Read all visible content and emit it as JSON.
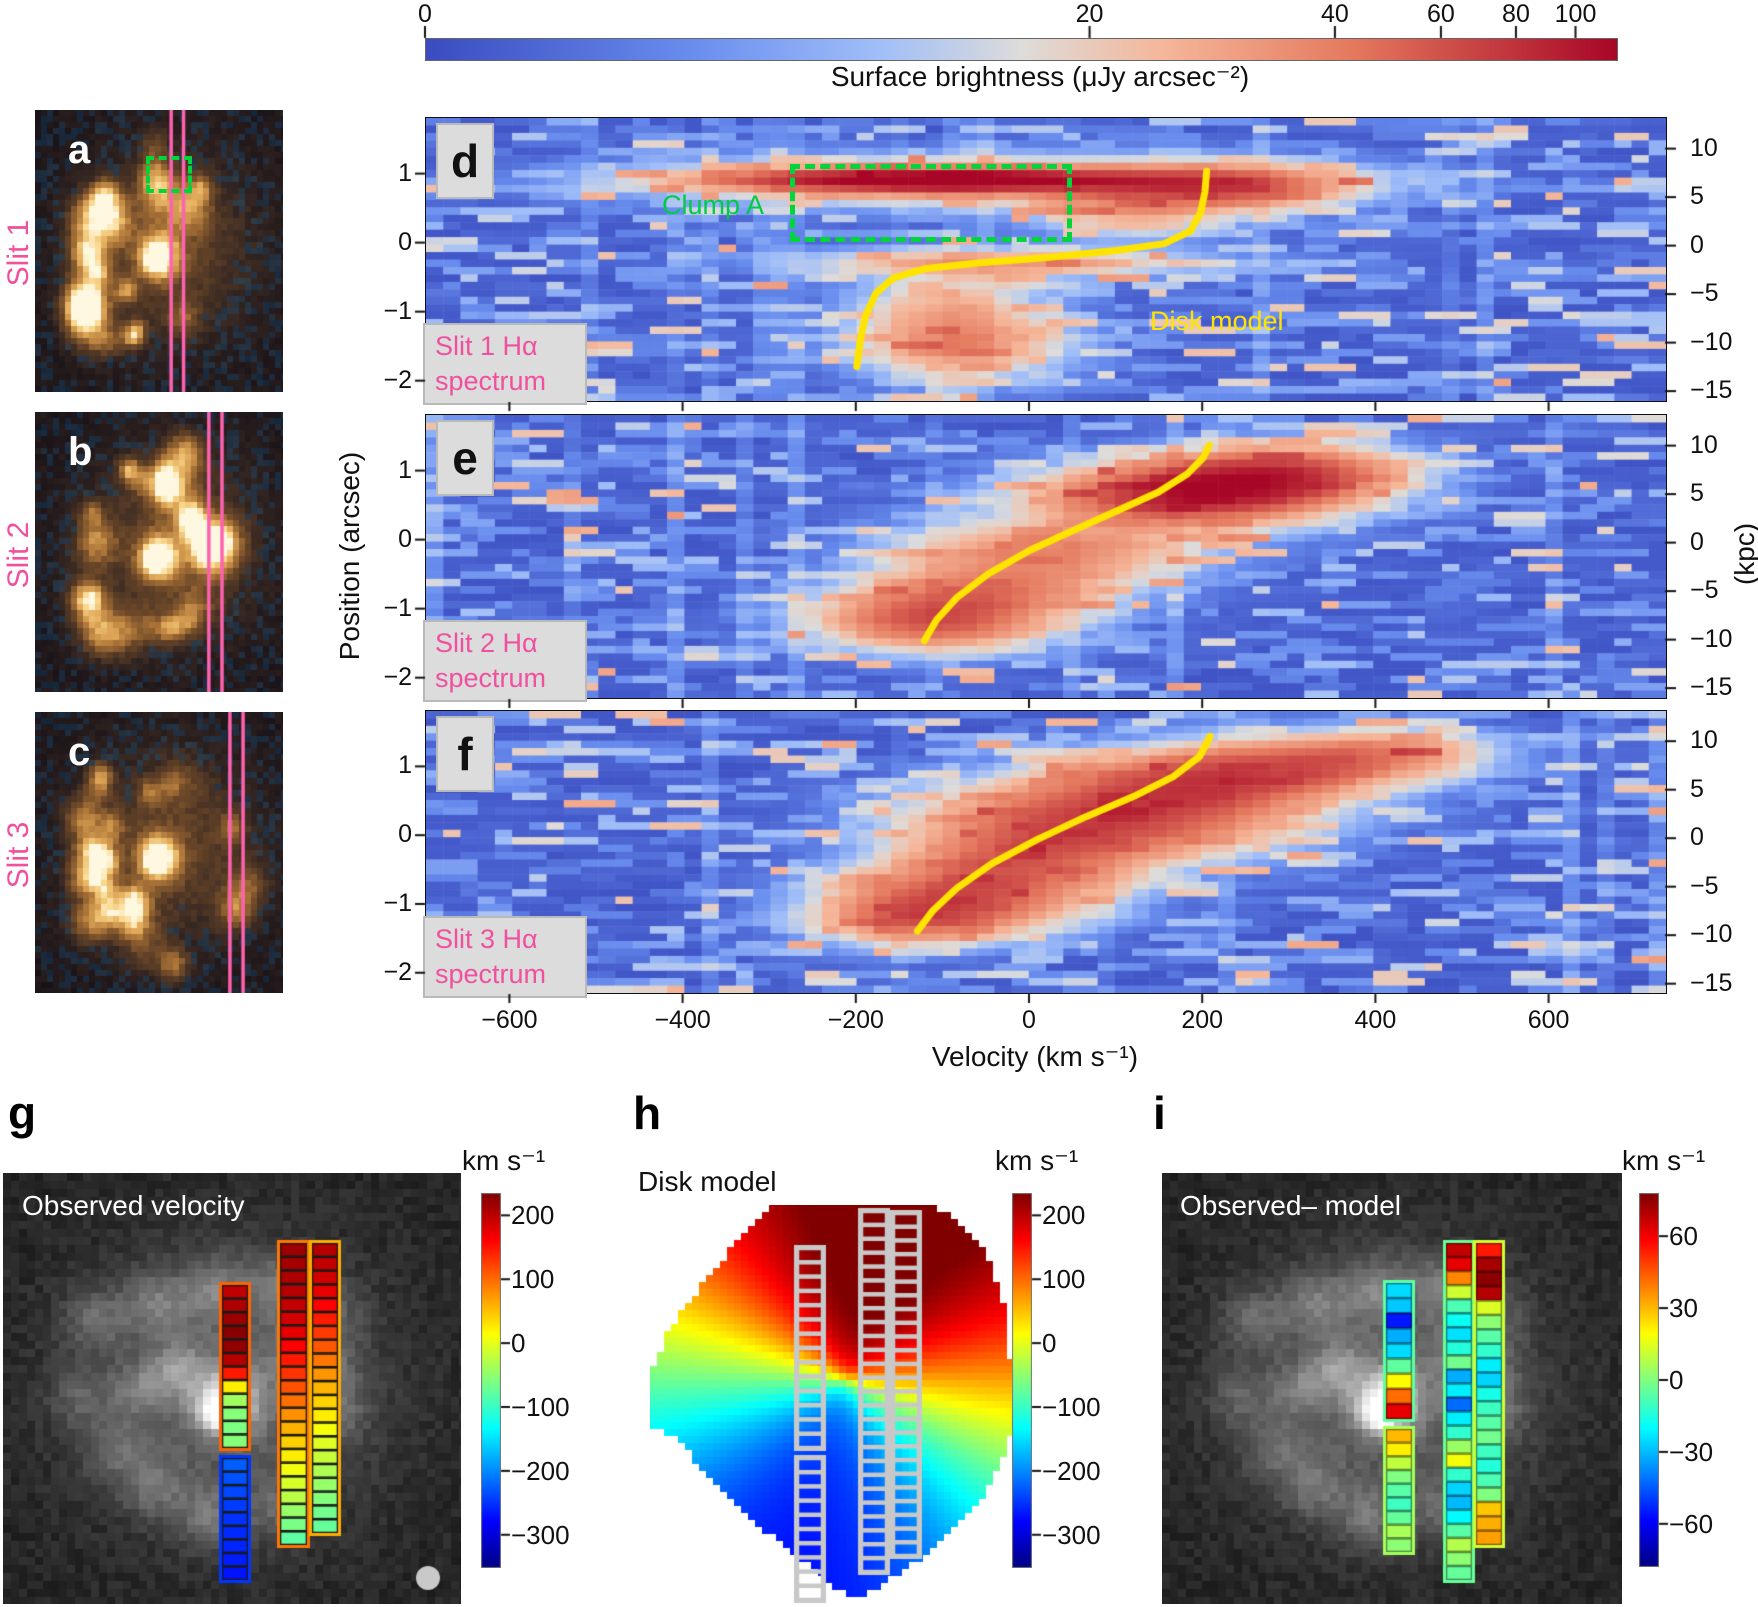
{
  "colorbar_top": {
    "ticks": [
      0,
      20,
      40,
      60,
      80,
      100
    ],
    "label": "Surface brightness (μJy arcsec⁻²)"
  },
  "galaxy_panels": [
    {
      "letter": "a",
      "slit_label": "Slit 1"
    },
    {
      "letter": "b",
      "slit_label": "Slit 2"
    },
    {
      "letter": "c",
      "slit_label": "Slit 3"
    }
  ],
  "pv_panels": [
    {
      "letter": "d",
      "caption_line1": "Slit 1 Hα",
      "caption_line2": "spectrum",
      "clump_label": "Clump A",
      "disk_model_label": "Disk model"
    },
    {
      "letter": "e",
      "caption_line1": "Slit 2 Hα",
      "caption_line2": "spectrum"
    },
    {
      "letter": "f",
      "caption_line1": "Slit 3 Hα",
      "caption_line2": "spectrum"
    }
  ],
  "axes": {
    "y_label": "Position (arcsec)",
    "y_ticks": [
      1,
      0,
      -1,
      -2
    ],
    "right_label": "(kpc)",
    "right_ticks": [
      10,
      5,
      0,
      -5,
      -10,
      -15
    ],
    "x_label": "Velocity (km s⁻¹)",
    "x_ticks": [
      -600,
      -400,
      -200,
      0,
      200,
      400,
      600
    ]
  },
  "maps": {
    "g": {
      "letter": "g",
      "title": "Observed velocity",
      "cbar_label": "km s⁻¹",
      "cbar_ticks": [
        200,
        100,
        0,
        -100,
        -200,
        -300
      ]
    },
    "h": {
      "letter": "h",
      "title": "Disk model",
      "cbar_label": "km s⁻¹",
      "cbar_ticks": [
        200,
        100,
        0,
        -100,
        -200,
        -300
      ]
    },
    "i": {
      "letter": "i",
      "title": "Observed– model",
      "cbar_label": "km s⁻¹",
      "cbar_ticks": [
        60,
        30,
        0,
        -30,
        -60
      ]
    }
  },
  "colors": {
    "pink": "#f0509e",
    "slit_line_pink": "#ff62b0",
    "yellow": "#ffe400",
    "green": "#00cc44",
    "gray_box": "#dcdcdc"
  },
  "chart_data": {
    "pv_spectra": [
      {
        "id": "d",
        "type": "heatmap",
        "slit": 1,
        "caption": "Slit 1 Hα spectrum",
        "colormap": "coolwarm_asinh",
        "surface_brightness_ticks": [
          0,
          20,
          40,
          60,
          80,
          100
        ],
        "velocity_range_km_s": [
          -700,
          735
        ],
        "position_range_arcsec": [
          -2.28,
          1.82
        ],
        "kpc_range": [
          -15.5,
          11.5
        ],
        "disk_model_curve_v_pos": [
          [
            -200,
            -1.78
          ],
          [
            -196,
            -1.4
          ],
          [
            -190,
            -1.05
          ],
          [
            -178,
            -0.72
          ],
          [
            -158,
            -0.5
          ],
          [
            -120,
            -0.36
          ],
          [
            -60,
            -0.28
          ],
          [
            20,
            -0.2
          ],
          [
            100,
            -0.1
          ],
          [
            155,
            0.0
          ],
          [
            185,
            0.18
          ],
          [
            197,
            0.45
          ],
          [
            202,
            0.75
          ],
          [
            204,
            1.05
          ]
        ],
        "emission_blobs_v_pos_sv_sp_amp": [
          [
            -110,
            0.92,
            150,
            0.1,
            100
          ],
          [
            -60,
            0.9,
            230,
            0.22,
            40
          ],
          [
            225,
            0.82,
            90,
            0.2,
            55
          ],
          [
            -30,
            -0.28,
            150,
            0.13,
            30
          ],
          [
            -95,
            -1.05,
            70,
            0.4,
            28
          ],
          [
            -75,
            -1.55,
            80,
            0.28,
            24
          ],
          [
            120,
            0.45,
            70,
            0.25,
            25
          ]
        ],
        "clump_A": {
          "velocity_range_km_s": [
            -280,
            35
          ],
          "position_range_arcsec": [
            0.2,
            1.15
          ]
        }
      },
      {
        "id": "e",
        "type": "heatmap",
        "slit": 2,
        "caption": "Slit 2 Hα spectrum",
        "colormap": "coolwarm_asinh",
        "surface_brightness_ticks": [
          0,
          20,
          40,
          60,
          80,
          100
        ],
        "velocity_range_km_s": [
          -700,
          735
        ],
        "position_range_arcsec": [
          -2.28,
          1.82
        ],
        "kpc_range": [
          -15.5,
          11.5
        ],
        "disk_model_curve_v_pos": [
          [
            -122,
            -1.45
          ],
          [
            -108,
            -1.15
          ],
          [
            -84,
            -0.82
          ],
          [
            -48,
            -0.48
          ],
          [
            0,
            -0.14
          ],
          [
            52,
            0.16
          ],
          [
            102,
            0.44
          ],
          [
            148,
            0.7
          ],
          [
            182,
            0.97
          ],
          [
            200,
            1.2
          ],
          [
            207,
            1.38
          ]
        ],
        "emission_blobs_v_pos_sv_sp_amp": [
          [
            175,
            0.62,
            110,
            0.28,
            70
          ],
          [
            250,
            0.88,
            90,
            0.25,
            55
          ],
          [
            20,
            -0.15,
            110,
            0.28,
            38
          ],
          [
            -110,
            -1.15,
            85,
            0.28,
            60
          ],
          [
            -40,
            -0.7,
            95,
            0.25,
            34
          ],
          [
            320,
            1.05,
            85,
            0.25,
            32
          ]
        ]
      },
      {
        "id": "f",
        "type": "heatmap",
        "slit": 3,
        "caption": "Slit 3 Hα spectrum",
        "colormap": "coolwarm_asinh",
        "surface_brightness_ticks": [
          0,
          20,
          40,
          60,
          80,
          100
        ],
        "velocity_range_km_s": [
          -700,
          735
        ],
        "position_range_arcsec": [
          -2.28,
          1.82
        ],
        "kpc_range": [
          -15.5,
          11.5
        ],
        "disk_model_curve_v_pos": [
          [
            -130,
            -1.38
          ],
          [
            -112,
            -1.08
          ],
          [
            -84,
            -0.75
          ],
          [
            -44,
            -0.4
          ],
          [
            8,
            -0.05
          ],
          [
            64,
            0.28
          ],
          [
            120,
            0.58
          ],
          [
            166,
            0.87
          ],
          [
            196,
            1.16
          ],
          [
            208,
            1.45
          ]
        ],
        "emission_blobs_v_pos_sv_sp_amp": [
          [
            90,
            0.25,
            130,
            0.35,
            65
          ],
          [
            200,
            0.8,
            110,
            0.28,
            58
          ],
          [
            330,
            1.1,
            100,
            0.25,
            38
          ],
          [
            -70,
            -0.85,
            95,
            0.33,
            52
          ],
          [
            -135,
            -1.2,
            70,
            0.25,
            42
          ],
          [
            0,
            -0.3,
            90,
            0.3,
            38
          ],
          [
            430,
            1.25,
            70,
            0.2,
            22
          ]
        ]
      }
    ],
    "velocity_maps": [
      {
        "id": "g",
        "type": "slit_velocity_map",
        "title": "Observed velocity",
        "colormap": "jet",
        "colorbar_range_km_s": [
          -352,
          235
        ],
        "colorbar_ticks": [
          200,
          100,
          0,
          -100,
          -200,
          -300
        ],
        "slit_velocities_km_s": {
          "slit1_segments": [
            [
              198,
              208,
              220,
              230,
              224,
              204,
              148,
              25,
              -40,
              -55,
              -60,
              -55
            ],
            [
              -225,
              -232,
              -238,
              -244,
              -250,
              -255,
              -258,
              -262,
              -268
            ]
          ],
          "slit2": [
            218,
            214,
            209,
            203,
            196,
            187,
            176,
            163,
            148,
            132,
            115,
            97,
            78,
            60,
            42,
            25,
            8,
            -8,
            -25,
            -45,
            -62,
            -78
          ],
          "slit3": [
            205,
            197,
            187,
            175,
            161,
            146,
            129,
            112,
            94,
            76,
            58,
            41,
            25,
            10,
            -4,
            -18,
            -32,
            -45,
            -56,
            -66,
            -74
          ]
        },
        "beam_marker": true
      },
      {
        "id": "h",
        "type": "model_velocity_field",
        "title": "Disk model",
        "colormap": "jet",
        "colorbar_range_km_s": [
          -352,
          235
        ],
        "colorbar_ticks": [
          200,
          100,
          0,
          -100,
          -200,
          -300
        ],
        "vmax_km_s": 290,
        "kinematic_pa_deg": 15,
        "slit_overlays": "gray outlines"
      },
      {
        "id": "i",
        "type": "residual_map",
        "title": "Observed– model",
        "colormap": "jet",
        "colorbar_range_km_s": [
          -78,
          78
        ],
        "colorbar_ticks": [
          60,
          30,
          0,
          -30,
          -60
        ],
        "slit_velocities_km_s": {
          "slit1_segments": [
            [
              -25,
              -28,
              -55,
              -32,
              -25,
              -5,
              20,
              42,
              62
            ],
            [
              30,
              22,
              10,
              0,
              -6,
              -10,
              -4,
              6,
              2
            ]
          ],
          "slit2": [
            68,
            62,
            38,
            12,
            -8,
            -18,
            -24,
            -14,
            -2,
            -32,
            -22,
            -42,
            -22,
            -12,
            4,
            18,
            -12,
            -26,
            -30,
            -20,
            -6,
            8,
            2,
            -4
          ],
          "slit3": [
            55,
            72,
            76,
            70,
            14,
            2,
            -6,
            -12,
            -22,
            -26,
            -16,
            -10,
            -6,
            -2,
            -10,
            -14,
            -8,
            0,
            28,
            32,
            34
          ]
        }
      }
    ]
  }
}
